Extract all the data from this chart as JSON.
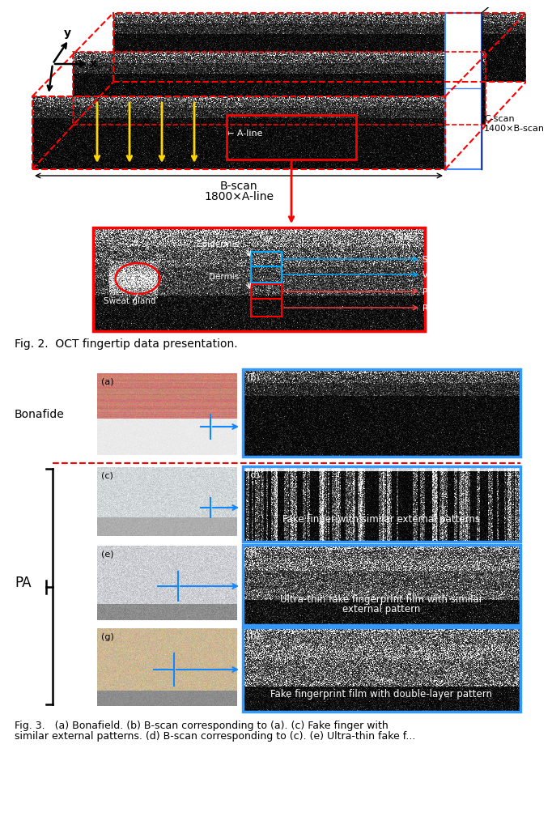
{
  "fig2_caption": "Fig. 2.  OCT fingertip data presentation.",
  "fig3_caption_line1": "Fig. 3.   (a) Bonafield. (b) B-scan corresponding to (a). (c) Fake finger with",
  "fig3_caption_line2": "similar external patterns. (d) B-scan corresponding to (c). (e) Ultra-thin fake f...",
  "annotations_fig2": {
    "a_line": "← A-line",
    "b_scan": "B-scan",
    "b_scan_sub": "1800×A-line",
    "c_scan": "C-scan",
    "c_scan_sub": "1400×B-scan",
    "glass": "Glass",
    "stratum": "Stratum corneum",
    "viable": "Viable epidermis",
    "papillary": "Papillary dermis",
    "reticular": "Reticular dermis",
    "epidermis": "Epidermis",
    "dermis": "Dermis",
    "sweat_gland": "Sweat gland"
  },
  "bonafide_label": "Bonafide",
  "pa_label": "PA",
  "d_text": "Fake finger with similar external patterns",
  "f_text_line1": "Ultra-thin fake fingerprint film with similar",
  "f_text_line2": "external pattern",
  "h_text": "Fake fingerprint film with double-layer pattern",
  "colors": {
    "red": "#FF0000",
    "blue_border": "#3377FF",
    "yellow": "#FFD700",
    "white": "#FFFFFF",
    "black": "#000000",
    "cyan_arrow": "#1188FF"
  }
}
